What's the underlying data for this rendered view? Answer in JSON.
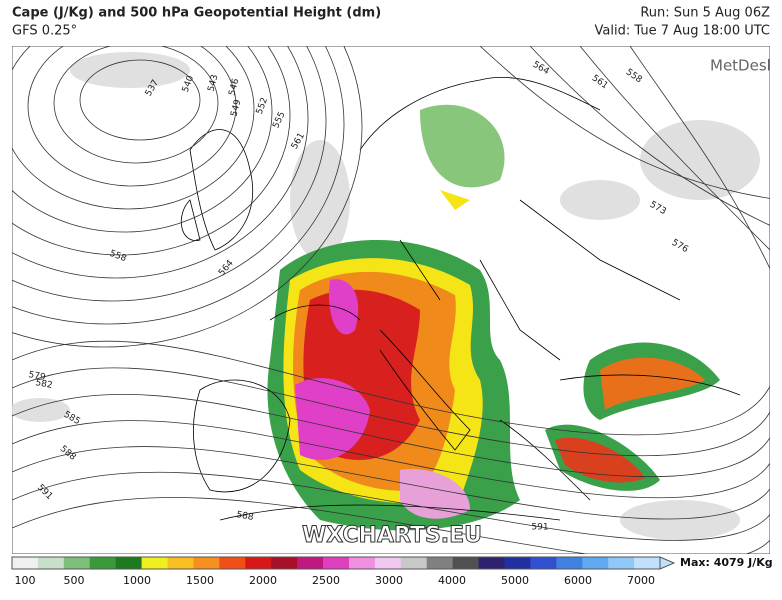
{
  "header": {
    "title": "Cape (J/Kg) and 500 hPa Geopotential Height (dm)",
    "model": "GFS 0.25°",
    "run": "Run: Sun 5 Aug 06Z",
    "valid": "Valid: Tue 7 Aug 18:00 UTC"
  },
  "brand": "MetDesk",
  "watermark": "WXCHARTS.EU",
  "contour_labels": [
    "537",
    "540",
    "543",
    "546",
    "549",
    "552",
    "555",
    "561",
    "558",
    "564",
    "564",
    "561",
    "558",
    "573",
    "576",
    "579",
    "582",
    "585",
    "588",
    "591",
    "588",
    "591"
  ],
  "colorbar": {
    "ticks": [
      "100",
      "500",
      "1000",
      "1500",
      "2000",
      "2500",
      "3000",
      "4000",
      "5000",
      "6000",
      "7000"
    ],
    "max_label": "Max: 4079 J/Kg"
  }
}
